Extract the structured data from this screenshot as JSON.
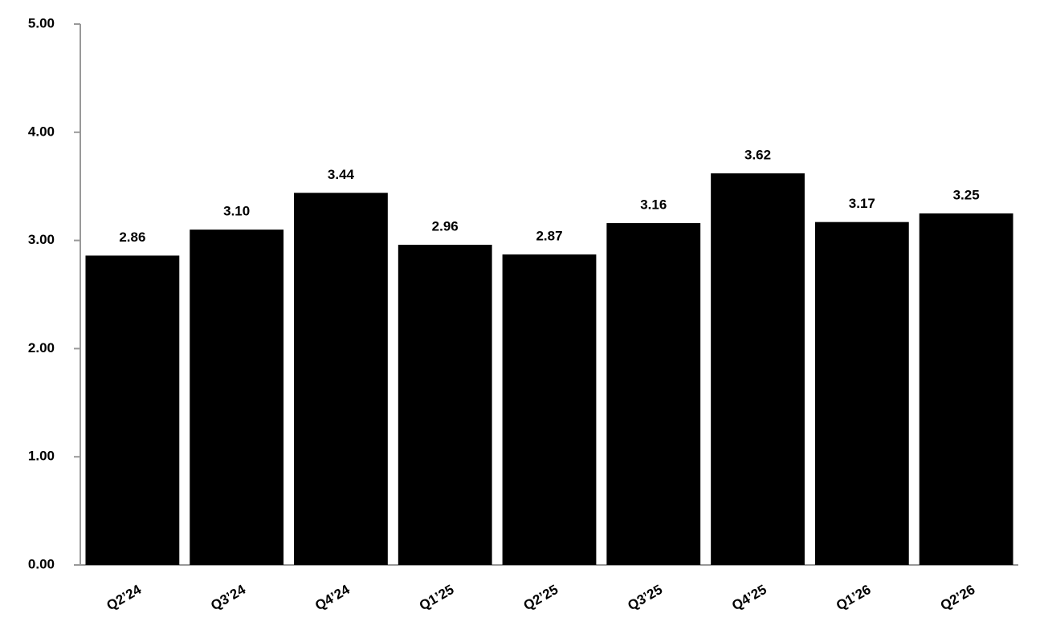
{
  "chart_data": {
    "type": "bar",
    "categories": [
      "Q2’24",
      "Q3’24",
      "Q4’24",
      "Q1’25",
      "Q2’25",
      "Q3’25",
      "Q4’25",
      "Q1’26",
      "Q2’26"
    ],
    "values": [
      2.86,
      3.1,
      3.44,
      2.96,
      2.87,
      3.16,
      3.62,
      3.17,
      3.25
    ],
    "value_labels": [
      "2.86",
      "3.10",
      "3.44",
      "2.96",
      "2.87",
      "3.16",
      "3.62",
      "3.17",
      "3.25"
    ],
    "color": "#000000",
    "ylim": [
      0,
      5
    ],
    "yticks": [
      {
        "value": 0,
        "label": "0.00"
      },
      {
        "value": 1,
        "label": "1.00"
      },
      {
        "value": 2,
        "label": "2.00"
      },
      {
        "value": 3,
        "label": "3.00"
      },
      {
        "value": 4,
        "label": "4.00"
      },
      {
        "value": 5,
        "label": "5.00"
      }
    ],
    "grid": false
  }
}
